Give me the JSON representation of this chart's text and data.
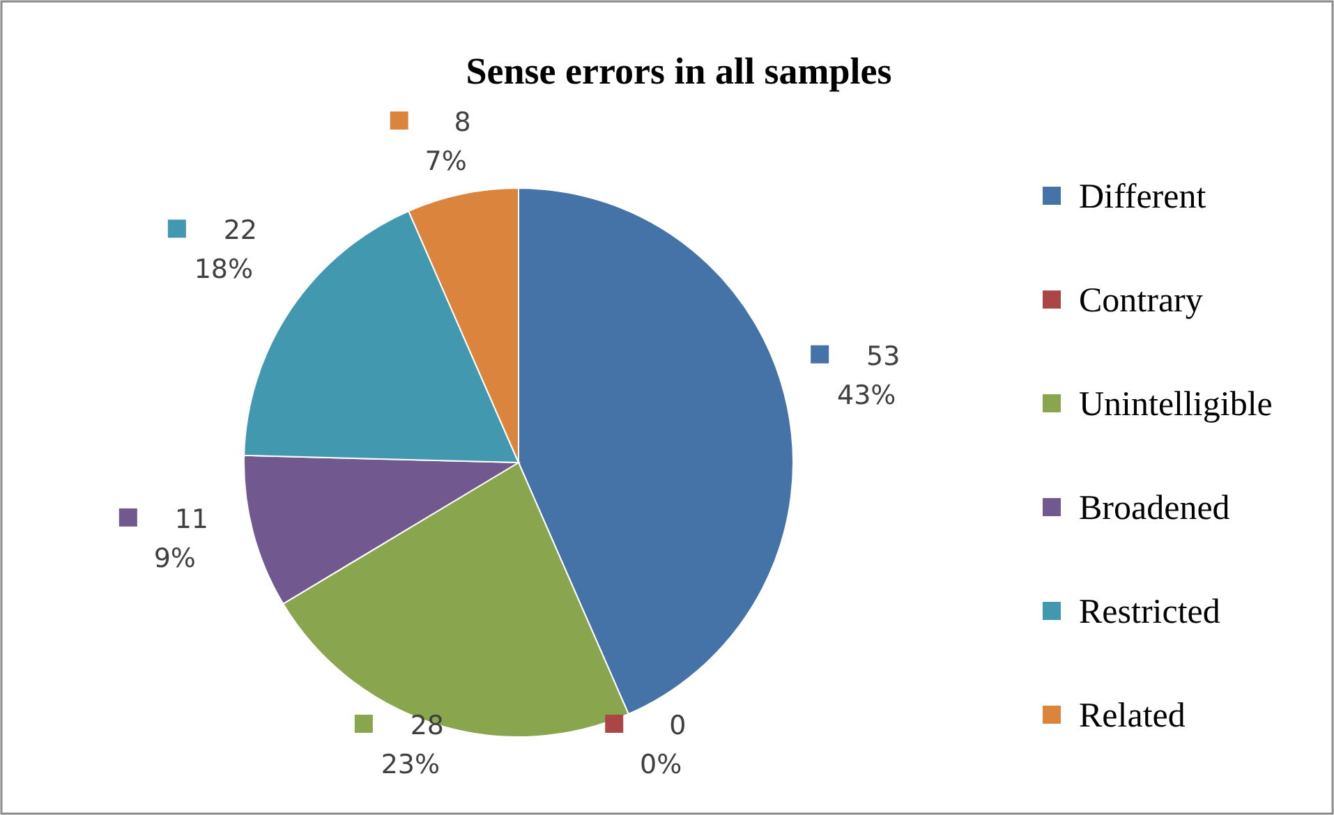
{
  "chart_data": {
    "type": "pie",
    "title": "Sense errors in all samples",
    "categories": [
      "Different",
      "Contrary",
      "Unintelligible",
      "Broadened",
      "Restricted",
      "Related"
    ],
    "values": [
      53,
      0,
      28,
      11,
      22,
      8
    ],
    "colors": [
      "#4572a7",
      "#aa4643",
      "#89a54e",
      "#71588f",
      "#4198af",
      "#db843d"
    ],
    "value_labels": [
      "53\n43%",
      "0\n0%",
      "28\n23%",
      "11\n9%",
      "22\n18%",
      "8\n7%"
    ],
    "legend": "right"
  }
}
